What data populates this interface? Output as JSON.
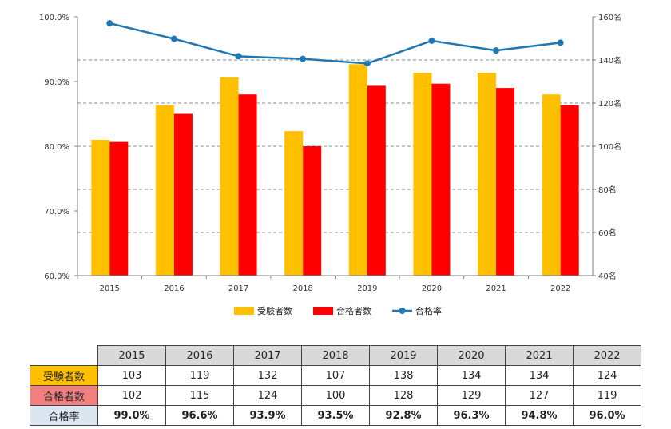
{
  "chart_data": {
    "type": "bar",
    "categories": [
      "2015",
      "2016",
      "2017",
      "2018",
      "2019",
      "2020",
      "2021",
      "2022"
    ],
    "series": [
      {
        "name": "受験者数",
        "type": "bar",
        "axis": "right",
        "color": "#FFC000",
        "values": [
          103,
          119,
          132,
          107,
          138,
          134,
          134,
          124
        ]
      },
      {
        "name": "合格者数",
        "type": "bar",
        "axis": "right",
        "color": "#FF0000",
        "values": [
          102,
          115,
          124,
          100,
          128,
          129,
          127,
          119
        ]
      },
      {
        "name": "合格率",
        "type": "line",
        "axis": "left",
        "color": "#1F77B4",
        "values": [
          99.0,
          96.6,
          93.9,
          93.5,
          92.8,
          96.3,
          94.8,
          96.0
        ]
      }
    ],
    "y_left": {
      "ylim": [
        60,
        100
      ],
      "ticks": [
        "60.0%",
        "70.0%",
        "80.0%",
        "90.0%",
        "100.0%"
      ]
    },
    "y_right": {
      "ylim": [
        40,
        160
      ],
      "ticks": [
        "40名",
        "60名",
        "80名",
        "100名",
        "120名",
        "140名",
        "160名"
      ]
    },
    "grid": "dashed horizontal at right-axis ticks",
    "legend": "bottom-center"
  },
  "table": {
    "years": [
      "2015",
      "2016",
      "2017",
      "2018",
      "2019",
      "2020",
      "2021",
      "2022"
    ],
    "rows": [
      {
        "label": "受験者数",
        "bg": "#FFC000",
        "values": [
          "103",
          "119",
          "132",
          "107",
          "138",
          "134",
          "134",
          "124"
        ]
      },
      {
        "label": "合格者数",
        "bg": "#F08080",
        "values": [
          "102",
          "115",
          "124",
          "100",
          "128",
          "129",
          "127",
          "119"
        ]
      },
      {
        "label": "合格率",
        "bg": "#DCE6F1",
        "values": [
          "99.0%",
          "96.6%",
          "93.9%",
          "93.5%",
          "92.8%",
          "96.3%",
          "94.8%",
          "96.0%"
        ]
      }
    ]
  }
}
